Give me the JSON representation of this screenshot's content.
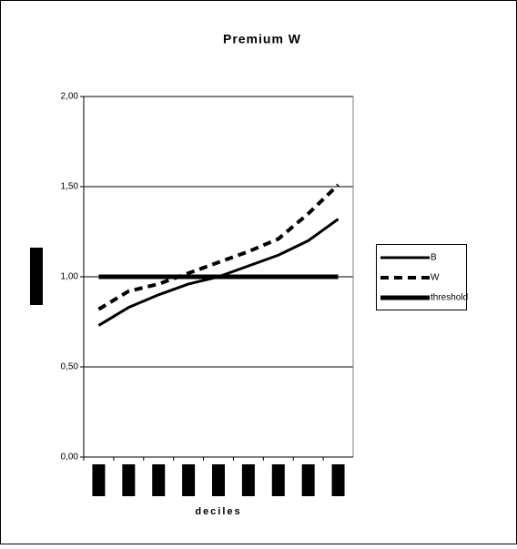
{
  "chart_data": {
    "type": "line",
    "title": "Premium W",
    "x_label": "deciles",
    "categories": [
      null,
      null,
      null,
      null,
      null,
      null,
      null,
      null,
      null
    ],
    "series": [
      {
        "name": "B",
        "color": "#000000",
        "style": "solid",
        "values": [
          0.73,
          0.83,
          0.9,
          0.96,
          1.0,
          1.06,
          1.12,
          1.2,
          1.32
        ]
      },
      {
        "name": "W",
        "color": "#000000",
        "style": "dashed",
        "values": [
          0.82,
          0.92,
          0.96,
          1.02,
          1.08,
          1.14,
          1.21,
          1.35,
          1.51
        ]
      },
      {
        "name": "threshold",
        "color": "#000000",
        "style": "thick",
        "values": [
          1.0,
          1.0,
          1.0,
          1.0,
          1.0,
          1.0,
          1.0,
          1.0,
          1.0
        ]
      }
    ],
    "ylim": [
      0,
      2
    ],
    "yticks": [
      {
        "value": 0,
        "label": "0,00"
      },
      {
        "value": 0.5,
        "label": "0,50"
      },
      {
        "value": 1,
        "label": "1,00"
      },
      {
        "value": 1.5,
        "label": "1,50"
      },
      {
        "value": 2,
        "label": "2,00"
      }
    ],
    "grid": true,
    "legend": "right"
  }
}
